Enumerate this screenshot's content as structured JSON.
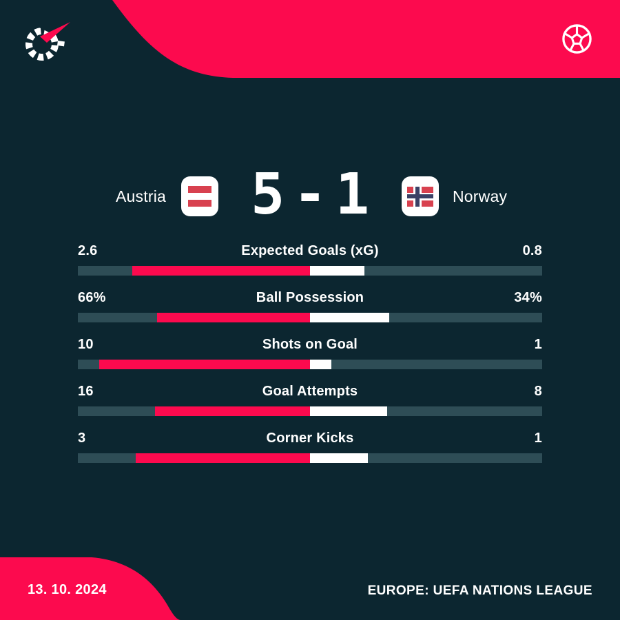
{
  "theme": {
    "background": "#0c2630",
    "accent_red": "#fc0a4e",
    "bar_track": "#2e4d56",
    "text_white": "#ffffff",
    "flag_red": "#d8414f",
    "flag_navy": "#3a4166"
  },
  "icons": {
    "brand_logo": "flashscore-logo",
    "sport": "football-icon",
    "home_flag": "austria-flag",
    "away_flag": "norway-flag"
  },
  "scoreboard": {
    "home_team": "Austria",
    "away_team": "Norway",
    "home_score": "5",
    "separator": "-",
    "away_score": "1"
  },
  "stats": [
    {
      "label": "Expected Goals (xG)",
      "home": "2.6",
      "away": "0.8",
      "home_value": 2.6,
      "away_value": 0.8
    },
    {
      "label": "Ball Possession",
      "home": "66%",
      "away": "34%",
      "home_value": 66,
      "away_value": 34
    },
    {
      "label": "Shots on Goal",
      "home": "10",
      "away": "1",
      "home_value": 10,
      "away_value": 1
    },
    {
      "label": "Goal Attempts",
      "home": "16",
      "away": "8",
      "home_value": 16,
      "away_value": 8
    },
    {
      "label": "Corner Kicks",
      "home": "3",
      "away": "1",
      "home_value": 3,
      "away_value": 1
    }
  ],
  "footer": {
    "date": "13. 10. 2024",
    "competition": "EUROPE: UEFA NATIONS LEAGUE"
  },
  "chart_data": {
    "type": "bar",
    "title": "Austria 5 - 1 Norway",
    "subtitle": "EUROPE: UEFA NATIONS LEAGUE, 13. 10. 2024",
    "categories": [
      "Expected Goals (xG)",
      "Ball Possession",
      "Shots on Goal",
      "Goal Attempts",
      "Corner Kicks"
    ],
    "series": [
      {
        "name": "Austria",
        "color": "#fc0a4e",
        "values": [
          2.6,
          66,
          10,
          16,
          3
        ]
      },
      {
        "name": "Norway",
        "color": "#ffffff",
        "values": [
          0.8,
          34,
          1,
          8,
          1
        ]
      }
    ],
    "value_labels": {
      "Austria": [
        "2.6",
        "66%",
        "10",
        "16",
        "3"
      ],
      "Norway": [
        "0.8",
        "34%",
        "1",
        "8",
        "1"
      ]
    },
    "layout": "horizontal paired bars anchored at center; each side length proportional to value share of row total",
    "legend_position": "none",
    "grid": false
  }
}
